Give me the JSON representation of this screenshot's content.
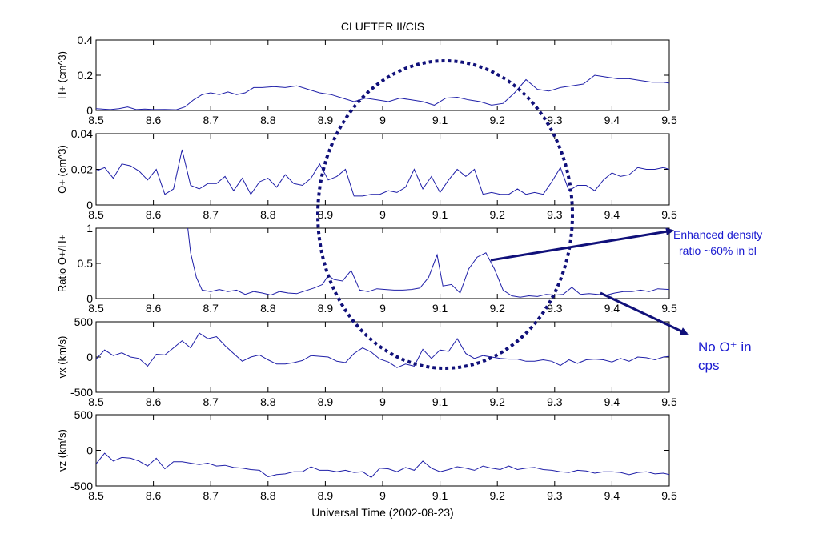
{
  "chart_data": {
    "type": "line",
    "title": "CLUETER II/CIS",
    "xlabel": "Universal Time (2002-08-23)",
    "xlim": [
      8.5,
      9.5
    ],
    "x_ticks": [
      "8.5",
      "8.6",
      "8.7",
      "8.8",
      "8.9",
      "9",
      "9.1",
      "9.2",
      "9.3",
      "9.4",
      "9.5"
    ],
    "series_color": "#1f1fa8",
    "grid": false,
    "panels": [
      {
        "name": "h-plus",
        "ylabel": "H+ (cm^3)",
        "ylim": [
          0,
          0.4
        ],
        "y_ticks": [
          "0",
          "0.2",
          "0.4"
        ],
        "x": [
          8.5,
          8.525,
          8.54,
          8.555,
          8.57,
          8.585,
          8.6,
          8.62,
          8.64,
          8.655,
          8.67,
          8.685,
          8.7,
          8.715,
          8.73,
          8.745,
          8.76,
          8.775,
          8.79,
          8.81,
          8.83,
          8.85,
          8.87,
          8.89,
          8.91,
          8.93,
          8.95,
          8.97,
          8.99,
          9.01,
          9.03,
          9.05,
          9.07,
          9.09,
          9.11,
          9.13,
          9.15,
          9.17,
          9.19,
          9.21,
          9.23,
          9.25,
          9.27,
          9.29,
          9.31,
          9.33,
          9.35,
          9.37,
          9.39,
          9.41,
          9.43,
          9.45,
          9.47,
          9.49,
          9.5
        ],
        "y": [
          0.01,
          0.005,
          0.01,
          0.02,
          0.005,
          0.008,
          0.005,
          0.006,
          0.004,
          0.02,
          0.06,
          0.09,
          0.1,
          0.09,
          0.105,
          0.09,
          0.1,
          0.13,
          0.13,
          0.135,
          0.13,
          0.14,
          0.12,
          0.1,
          0.09,
          0.07,
          0.05,
          0.07,
          0.06,
          0.05,
          0.07,
          0.06,
          0.05,
          0.03,
          0.07,
          0.075,
          0.06,
          0.05,
          0.03,
          0.04,
          0.1,
          0.175,
          0.12,
          0.11,
          0.13,
          0.14,
          0.15,
          0.2,
          0.19,
          0.18,
          0.18,
          0.17,
          0.16,
          0.16,
          0.155
        ]
      },
      {
        "name": "o-plus",
        "ylabel": "O+ (cm^3)",
        "ylim": [
          0,
          0.04
        ],
        "y_ticks": [
          "0",
          "0.02",
          "0.04"
        ],
        "x": [
          8.5,
          8.515,
          8.53,
          8.545,
          8.56,
          8.575,
          8.59,
          8.605,
          8.62,
          8.635,
          8.65,
          8.665,
          8.68,
          8.695,
          8.71,
          8.725,
          8.74,
          8.755,
          8.77,
          8.785,
          8.8,
          8.815,
          8.83,
          8.845,
          8.86,
          8.875,
          8.89,
          8.905,
          8.92,
          8.935,
          8.95,
          8.965,
          8.98,
          8.995,
          9.01,
          9.025,
          9.04,
          9.055,
          9.07,
          9.085,
          9.1,
          9.115,
          9.13,
          9.145,
          9.16,
          9.175,
          9.19,
          9.205,
          9.22,
          9.235,
          9.25,
          9.265,
          9.28,
          9.295,
          9.31,
          9.325,
          9.34,
          9.355,
          9.37,
          9.385,
          9.4,
          9.415,
          9.43,
          9.445,
          9.46,
          9.475,
          9.49,
          9.5
        ],
        "y": [
          0.019,
          0.021,
          0.015,
          0.023,
          0.022,
          0.019,
          0.014,
          0.02,
          0.006,
          0.009,
          0.031,
          0.011,
          0.009,
          0.012,
          0.012,
          0.016,
          0.008,
          0.015,
          0.006,
          0.013,
          0.015,
          0.01,
          0.017,
          0.012,
          0.011,
          0.015,
          0.023,
          0.014,
          0.016,
          0.02,
          0.005,
          0.005,
          0.006,
          0.006,
          0.008,
          0.007,
          0.01,
          0.02,
          0.009,
          0.016,
          0.007,
          0.014,
          0.02,
          0.016,
          0.02,
          0.006,
          0.007,
          0.006,
          0.006,
          0.009,
          0.006,
          0.007,
          0.006,
          0.013,
          0.021,
          0.008,
          0.011,
          0.011,
          0.008,
          0.014,
          0.018,
          0.016,
          0.017,
          0.021,
          0.02,
          0.02,
          0.021,
          0.02
        ]
      },
      {
        "name": "ratio",
        "ylabel": "Ratio O+/H+",
        "ylim": [
          0,
          1
        ],
        "y_ticks": [
          "0",
          "0.5",
          "1"
        ],
        "x": [
          8.66,
          8.665,
          8.675,
          8.685,
          8.7,
          8.715,
          8.73,
          8.745,
          8.76,
          8.775,
          8.79,
          8.805,
          8.82,
          8.835,
          8.85,
          8.865,
          8.88,
          8.895,
          8.905,
          8.915,
          8.93,
          8.945,
          8.96,
          8.975,
          8.99,
          9.005,
          9.02,
          9.035,
          9.05,
          9.065,
          9.08,
          9.095,
          9.105,
          9.12,
          9.135,
          9.15,
          9.165,
          9.18,
          9.195,
          9.21,
          9.225,
          9.24,
          9.255,
          9.27,
          9.285,
          9.3,
          9.315,
          9.33,
          9.345,
          9.36,
          9.375,
          9.39,
          9.405,
          9.42,
          9.435,
          9.45,
          9.465,
          9.48,
          9.5
        ],
        "y": [
          1.0,
          0.65,
          0.3,
          0.12,
          0.1,
          0.13,
          0.1,
          0.12,
          0.06,
          0.1,
          0.08,
          0.05,
          0.1,
          0.08,
          0.07,
          0.11,
          0.15,
          0.2,
          0.33,
          0.27,
          0.25,
          0.4,
          0.12,
          0.1,
          0.14,
          0.13,
          0.12,
          0.12,
          0.13,
          0.15,
          0.3,
          0.62,
          0.18,
          0.2,
          0.08,
          0.42,
          0.59,
          0.65,
          0.42,
          0.12,
          0.04,
          0.02,
          0.04,
          0.03,
          0.06,
          0.05,
          0.06,
          0.16,
          0.06,
          0.07,
          0.06,
          0.05,
          0.08,
          0.1,
          0.1,
          0.12,
          0.1,
          0.14,
          0.13
        ]
      },
      {
        "name": "vx",
        "ylabel": "vx (km/s)",
        "ylim": [
          -500,
          500
        ],
        "y_ticks": [
          "-500",
          "0",
          "500"
        ],
        "x": [
          8.5,
          8.515,
          8.53,
          8.545,
          8.56,
          8.575,
          8.59,
          8.605,
          8.62,
          8.635,
          8.65,
          8.665,
          8.68,
          8.695,
          8.71,
          8.725,
          8.74,
          8.755,
          8.77,
          8.785,
          8.8,
          8.815,
          8.83,
          8.845,
          8.86,
          8.875,
          8.89,
          8.905,
          8.92,
          8.935,
          8.95,
          8.965,
          8.98,
          8.995,
          9.01,
          9.025,
          9.04,
          9.055,
          9.07,
          9.085,
          9.1,
          9.115,
          9.13,
          9.145,
          9.16,
          9.175,
          9.19,
          9.205,
          9.22,
          9.235,
          9.25,
          9.265,
          9.28,
          9.295,
          9.31,
          9.325,
          9.34,
          9.355,
          9.37,
          9.385,
          9.4,
          9.415,
          9.43,
          9.445,
          9.46,
          9.475,
          9.49,
          9.5
        ],
        "y": [
          -30,
          100,
          20,
          60,
          0,
          -20,
          -130,
          40,
          30,
          130,
          230,
          130,
          340,
          260,
          290,
          160,
          50,
          -60,
          0,
          30,
          -40,
          -100,
          -100,
          -80,
          -50,
          20,
          10,
          0,
          -60,
          -80,
          50,
          130,
          70,
          -30,
          -70,
          -150,
          -100,
          -130,
          110,
          -20,
          100,
          80,
          260,
          50,
          -20,
          20,
          0,
          -20,
          -30,
          -30,
          -60,
          -60,
          -40,
          -60,
          -120,
          -40,
          -90,
          -40,
          -30,
          -40,
          -70,
          -20,
          -60,
          0,
          -10,
          -40,
          0,
          10
        ]
      },
      {
        "name": "vz",
        "ylabel": "vz (km/s)",
        "ylim": [
          -500,
          500
        ],
        "y_ticks": [
          "-500",
          "0",
          "500"
        ],
        "x": [
          8.5,
          8.515,
          8.53,
          8.545,
          8.56,
          8.575,
          8.59,
          8.605,
          8.62,
          8.635,
          8.65,
          8.665,
          8.68,
          8.695,
          8.71,
          8.725,
          8.74,
          8.755,
          8.77,
          8.785,
          8.8,
          8.815,
          8.83,
          8.845,
          8.86,
          8.875,
          8.89,
          8.905,
          8.92,
          8.935,
          8.95,
          8.965,
          8.98,
          8.995,
          9.01,
          9.025,
          9.04,
          9.055,
          9.07,
          9.085,
          9.1,
          9.115,
          9.13,
          9.145,
          9.16,
          9.175,
          9.19,
          9.205,
          9.22,
          9.235,
          9.25,
          9.265,
          9.28,
          9.295,
          9.31,
          9.325,
          9.34,
          9.355,
          9.37,
          9.385,
          9.4,
          9.415,
          9.43,
          9.445,
          9.46,
          9.475,
          9.49,
          9.5
        ],
        "y": [
          -190,
          -40,
          -150,
          -100,
          -110,
          -150,
          -220,
          -110,
          -260,
          -160,
          -160,
          -180,
          -200,
          -180,
          -220,
          -210,
          -240,
          -250,
          -270,
          -280,
          -370,
          -340,
          -330,
          -300,
          -300,
          -230,
          -280,
          -280,
          -300,
          -280,
          -310,
          -300,
          -380,
          -250,
          -260,
          -300,
          -240,
          -280,
          -150,
          -250,
          -300,
          -270,
          -230,
          -250,
          -280,
          -220,
          -250,
          -270,
          -220,
          -270,
          -250,
          -240,
          -270,
          -280,
          -300,
          -310,
          -280,
          -290,
          -320,
          -300,
          -300,
          -310,
          -340,
          -310,
          -300,
          -330,
          -320,
          -340
        ]
      }
    ],
    "annotations": {
      "note_1_line_1": "Enhanced density",
      "note_1_line_2": "ratio ~60% in bl",
      "note_2_line_1": "No O⁺ in",
      "note_2_line_2": "cps",
      "highlight_color": "#10107a",
      "arrow_color": "#10107a"
    }
  }
}
